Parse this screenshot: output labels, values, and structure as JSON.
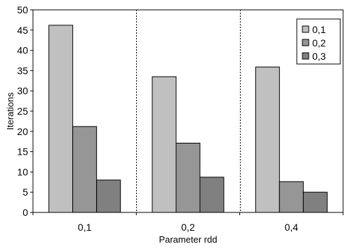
{
  "chart_data": {
    "type": "bar",
    "xlabel": "Parameter rdd",
    "ylabel": "Iterations",
    "categories": [
      "0,1",
      "0,2",
      "0,4"
    ],
    "series": [
      {
        "name": "0,1",
        "values": [
          46.2,
          33.5,
          35.9
        ],
        "color": "#c0c0c0"
      },
      {
        "name": "0,2",
        "values": [
          21.2,
          17.1,
          7.6
        ],
        "color": "#969696"
      },
      {
        "name": "0,3",
        "values": [
          8.0,
          8.7,
          5.0
        ],
        "color": "#808080"
      }
    ],
    "ylim": [
      0,
      50
    ],
    "yticks": [
      "0",
      "5",
      "10",
      "15",
      "20",
      "25",
      "30",
      "35",
      "40",
      "45",
      "50"
    ],
    "ytick_values": [
      0,
      5,
      10,
      15,
      20,
      25,
      30,
      35,
      40,
      45,
      50
    ],
    "grid": false,
    "category_separators": true,
    "legend_position": "top-right"
  }
}
